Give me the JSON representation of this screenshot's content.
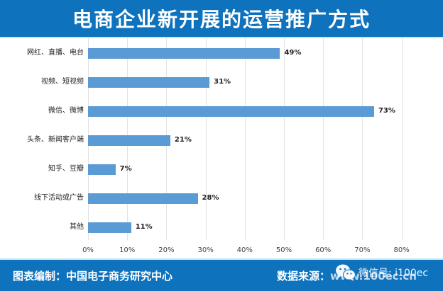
{
  "header": {
    "title": "电商企业新开展的运营推广方式"
  },
  "footer": {
    "credit_label": "图表编制：",
    "credit_value": "中国电子商务研究中心",
    "source_label": "数据来源：",
    "source_value": "www.100ec.cn",
    "watermark": "微信号: i100ec",
    "watermark_icon": "wechat-icon"
  },
  "colors": {
    "header_bg": "#0e72bd",
    "accent_line": "#bfe6f5",
    "bar": "#5b9bd5",
    "gridline": "#e3e3e3"
  },
  "chart_data": {
    "type": "bar",
    "orientation": "horizontal",
    "title": "电商企业新开展的运营推广方式",
    "categories": [
      "网红、直播、电台",
      "视频、短视频",
      "微信、微博",
      "头条、新闻客户端",
      "知乎、豆瓣",
      "线下活动或广告",
      "其他"
    ],
    "values": [
      49,
      31,
      73,
      21,
      7,
      28,
      11
    ],
    "value_labels": [
      "49%",
      "31%",
      "73%",
      "21%",
      "7%",
      "28%",
      "11%"
    ],
    "xlabel": "",
    "ylabel": "",
    "xlim": [
      0,
      80
    ],
    "x_ticks": [
      "0%",
      "10%",
      "20%",
      "30%",
      "40%",
      "50%",
      "60%",
      "70%",
      "80%"
    ],
    "grid": "vertical",
    "legend": "none"
  }
}
